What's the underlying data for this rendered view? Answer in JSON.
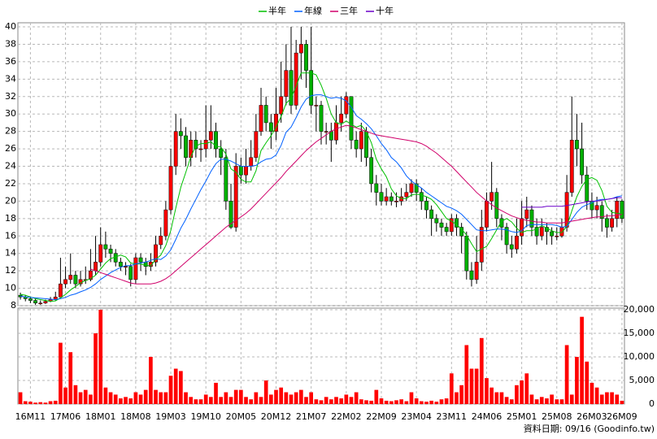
{
  "chart_data": {
    "type": "candlestick",
    "categories": [
      null,
      null,
      "16M11",
      null,
      null,
      null,
      null,
      null,
      null,
      "17M06",
      null,
      null,
      null,
      null,
      null,
      null,
      "18M01",
      null,
      null,
      null,
      null,
      null,
      null,
      "18M08",
      null,
      null,
      null,
      null,
      null,
      null,
      "19M03",
      null,
      null,
      null,
      null,
      null,
      null,
      "19M10",
      null,
      null,
      null,
      null,
      null,
      null,
      "20M05",
      null,
      null,
      null,
      null,
      null,
      null,
      "20M12",
      null,
      null,
      null,
      null,
      null,
      null,
      "21M07",
      null,
      null,
      null,
      null,
      null,
      null,
      "22M02",
      null,
      null,
      null,
      null,
      null,
      null,
      "22M09",
      null,
      null,
      null,
      null,
      null,
      null,
      "23M04",
      null,
      null,
      null,
      null,
      null,
      null,
      "23M11",
      null,
      null,
      null,
      null,
      null,
      null,
      "24M06",
      null,
      null,
      null,
      null,
      null,
      null,
      "25M01",
      null,
      null,
      null,
      null,
      null,
      null,
      "25M08",
      null,
      null,
      null,
      null,
      null,
      null,
      "26M03",
      null,
      null,
      null,
      null,
      null,
      "26M09"
    ],
    "open": [
      9.2,
      9,
      8.8,
      8.6,
      8.3,
      8.3,
      8.5,
      8.7,
      9,
      10.5,
      11,
      11.5,
      10.5,
      11,
      11,
      12,
      13,
      15,
      14.5,
      14,
      13,
      12.5,
      12.5,
      11,
      13.5,
      13,
      12.5,
      13,
      15,
      16,
      19,
      24,
      28,
      27.5,
      25,
      27,
      26,
      26,
      27,
      28,
      26,
      25,
      20,
      17,
      24,
      23,
      24,
      25,
      28,
      31,
      29,
      28,
      30,
      32,
      35,
      31,
      37,
      38,
      35,
      31,
      31,
      28,
      28,
      27,
      29,
      30,
      32,
      27,
      26,
      28,
      25,
      22,
      21,
      20,
      20.5,
      20,
      20,
      20.5,
      21,
      22,
      21,
      20,
      19,
      18,
      17.5,
      17,
      16.5,
      18,
      17,
      16,
      12,
      11,
      13,
      17,
      20,
      21,
      18,
      17,
      15,
      14.5,
      16,
      18,
      19,
      17,
      16,
      17,
      16.5,
      16,
      16,
      17,
      21,
      27,
      26,
      23,
      20,
      19,
      19.5,
      18,
      17,
      18,
      20
    ],
    "high": [
      9.5,
      9.2,
      9,
      8.8,
      8.6,
      8.7,
      9,
      9.6,
      13.5,
      12.5,
      14,
      12,
      12,
      12.5,
      14.5,
      16,
      17,
      16.5,
      15,
      14.5,
      13.5,
      13,
      12.8,
      14,
      14,
      13.5,
      14,
      16,
      17,
      20,
      26,
      30,
      29.5,
      28.5,
      28,
      28,
      27,
      31,
      31,
      29,
      27,
      26,
      22,
      25.5,
      25,
      26,
      27,
      30,
      33,
      32,
      30,
      33,
      36,
      38,
      40,
      38.5,
      40,
      38.5,
      40,
      32,
      31.5,
      29,
      29,
      31,
      32,
      32.5,
      32,
      28,
      29,
      28.5,
      26,
      23,
      22,
      21.5,
      21,
      21,
      21.5,
      22,
      22.5,
      22.5,
      21.5,
      20.5,
      19.5,
      18.5,
      18,
      17.5,
      18.5,
      18.5,
      17.5,
      16.5,
      13,
      16,
      19,
      21,
      24.5,
      21.5,
      18.5,
      17.5,
      16,
      18,
      20,
      20.5,
      19.5,
      18,
      18,
      17.5,
      17,
      17,
      18,
      23,
      32,
      30,
      29,
      24,
      21,
      20.5,
      20,
      18.5,
      19,
      20.5,
      20.2
    ],
    "low": [
      8.7,
      8.5,
      8.3,
      8.1,
      8.1,
      8.2,
      8.4,
      8.6,
      9,
      10,
      10.5,
      10,
      10.2,
      10.5,
      10.8,
      11.5,
      12.5,
      13.5,
      13,
      12.5,
      12,
      11.5,
      10.2,
      10.5,
      12,
      11.5,
      12,
      12.5,
      14.5,
      15.5,
      18.5,
      23,
      26,
      24,
      24,
      25,
      24.5,
      25,
      26,
      25,
      23,
      19,
      16.8,
      16.5,
      22,
      22,
      23.5,
      24.5,
      27.5,
      28,
      26,
      27,
      29,
      31,
      30,
      30.5,
      34,
      33,
      30,
      28,
      26.5,
      26.5,
      24.5,
      26.5,
      28,
      29.5,
      26,
      25,
      24.5,
      24,
      21,
      19.5,
      19.5,
      19.5,
      19.5,
      19.3,
      19.5,
      20,
      20.5,
      20,
      19,
      18,
      16,
      16.5,
      16,
      16,
      16,
      16,
      14,
      11,
      10.2,
      10.5,
      12,
      16.5,
      19,
      17,
      15.5,
      14,
      13.5,
      14,
      15,
      17,
      16,
      15,
      15.5,
      15,
      15,
      15.5,
      15.8,
      16.5,
      20.5,
      24,
      22,
      19,
      18,
      18,
      16.5,
      15.8,
      16.5,
      17,
      17.5
    ],
    "close": [
      9,
      8.8,
      8.6,
      8.3,
      8.3,
      8.5,
      8.7,
      9,
      10.5,
      11,
      11.5,
      10.5,
      11,
      11,
      12,
      13,
      15,
      14.5,
      14,
      13,
      12.5,
      12.5,
      11,
      13.5,
      13,
      12.5,
      13,
      15,
      16,
      19,
      24,
      28,
      27.5,
      25,
      27,
      26,
      26,
      27,
      28,
      26,
      25,
      20,
      17,
      24,
      23,
      24,
      25,
      28,
      31,
      29,
      28,
      30,
      32,
      35,
      31,
      37,
      38,
      35,
      31,
      31,
      28,
      28,
      27,
      29,
      30,
      32,
      27,
      26,
      28,
      25,
      22,
      21,
      20,
      20.5,
      20,
      20,
      20.5,
      21,
      22,
      21,
      20,
      19,
      18,
      17.5,
      17,
      16.5,
      18,
      17,
      16,
      12,
      11,
      13,
      17,
      20,
      21,
      18,
      17,
      15,
      14.5,
      16,
      18,
      19,
      17,
      16,
      17,
      16.5,
      16,
      16,
      17,
      21,
      27,
      26,
      23,
      20,
      19,
      19.5,
      18,
      17,
      18,
      20,
      18
    ],
    "up_color": "#ff0000",
    "down_color": "#00b000",
    "ylim": [
      8,
      40
    ],
    "yticks": [
      8,
      10,
      12,
      14,
      16,
      18,
      20,
      22,
      24,
      26,
      28,
      30,
      32,
      34,
      36,
      38,
      40
    ],
    "grid": true,
    "series": [
      {
        "name": "半年",
        "color": "#00c000",
        "values": [
          9.3,
          9.2,
          9,
          8.8,
          8.7,
          8.6,
          8.5,
          8.55,
          8.9,
          9.3,
          9.8,
          10.2,
          10.6,
          10.9,
          11.1,
          11.5,
          12.2,
          12.9,
          13.4,
          13.6,
          13.8,
          13.6,
          12.9,
          12.8,
          12.8,
          12.6,
          12.6,
          13.3,
          13.8,
          14.9,
          16.6,
          19.2,
          21.6,
          23.3,
          25.1,
          26.3,
          26.6,
          26.6,
          26.8,
          26.3,
          26.2,
          25.4,
          23.7,
          23.3,
          22.5,
          22.2,
          22.2,
          23.5,
          25.8,
          26.7,
          27.5,
          28.5,
          29.7,
          31.2,
          31.8,
          33.2,
          34.7,
          34.7,
          34.7,
          34.5,
          33.3,
          31.8,
          30,
          29,
          28.8,
          29.2,
          28.8,
          28.5,
          28.7,
          28,
          26.7,
          24.8,
          23.7,
          22.8,
          21.4,
          20.6,
          20.3,
          20.3,
          20.7,
          20.8,
          20.7,
          20.5,
          20.2,
          19.6,
          18.8,
          18,
          17.7,
          17.3,
          16.8,
          16.1,
          15.1,
          14.2,
          14.5,
          14.8,
          15.7,
          16.7,
          17.7,
          18,
          17.6,
          16.9,
          16.4,
          16.6,
          16.6,
          16.8,
          17.2,
          16.9,
          16.6,
          16.4,
          16.4,
          17.1,
          18.9,
          20.5,
          21.7,
          22.5,
          22.7,
          22.4,
          21.2,
          19.4,
          18.7,
          18.6,
          18.6
        ]
      },
      {
        "name": "年線",
        "color": "#0060ff",
        "values": [
          9.1,
          9,
          8.95,
          8.9,
          8.85,
          8.8,
          8.75,
          8.7,
          8.8,
          8.95,
          9.2,
          9.35,
          9.6,
          9.8,
          10.1,
          10.5,
          11,
          11.4,
          11.8,
          12.1,
          12.4,
          12.6,
          12.6,
          12.8,
          12.9,
          13,
          13.2,
          13.4,
          13.3,
          13.7,
          14.4,
          15.6,
          16.9,
          17.9,
          19.1,
          20.2,
          21.3,
          22.3,
          23.4,
          24.3,
          24.8,
          24.8,
          24.6,
          24.3,
          24,
          24,
          24,
          24.1,
          24.5,
          24.8,
          24.9,
          25.3,
          26.4,
          27.9,
          28.5,
          29.6,
          30.8,
          31.7,
          32.1,
          32.2,
          32.2,
          32,
          31.8,
          31.9,
          31.8,
          31.5,
          30.8,
          29.8,
          29.4,
          28.9,
          28.3,
          27.5,
          26.6,
          25.9,
          25,
          24.5,
          23.8,
          22.9,
          22.3,
          21.9,
          21.5,
          21,
          20.6,
          20.2,
          19.8,
          19.4,
          19.2,
          18.9,
          18.5,
          17.9,
          17.3,
          16.7,
          16.6,
          16.6,
          16.7,
          16.8,
          16.8,
          16.7,
          16.5,
          16.4,
          16.6,
          17.2,
          17.3,
          17.3,
          17.3,
          17.3,
          17.3,
          17.2,
          17,
          17.1,
          17.9,
          18.7,
          19.3,
          19.6,
          19.8,
          20.1,
          20.2,
          20.2,
          20.3,
          20.5,
          20.6
        ]
      },
      {
        "name": "三年",
        "color": "#d0006a",
        "values": [
          null,
          null,
          null,
          null,
          null,
          null,
          null,
          null,
          null,
          null,
          null,
          null,
          null,
          null,
          12.2,
          12,
          11.8,
          11.6,
          11.4,
          11.2,
          11,
          10.8,
          10.6,
          10.5,
          10.5,
          10.5,
          10.5,
          10.6,
          10.8,
          11.1,
          11.5,
          12,
          12.5,
          13,
          13.5,
          14,
          14.5,
          15,
          15.5,
          16,
          16.5,
          17,
          17.4,
          17.8,
          18.2,
          18.6,
          19.1,
          19.7,
          20.3,
          20.9,
          21.5,
          22.1,
          22.7,
          23.4,
          24,
          24.6,
          25.2,
          25.8,
          26.3,
          26.8,
          27.2,
          27.6,
          28,
          28.3,
          28.5,
          28.7,
          28.6,
          28.4,
          28.2,
          28,
          27.8,
          27.6,
          27.5,
          27.4,
          27.3,
          27.2,
          27.1,
          27,
          26.9,
          26.8,
          26.6,
          26.3,
          25.9,
          25.5,
          25,
          24.5,
          24,
          23.4,
          22.8,
          22.2,
          21.6,
          21,
          20.5,
          20,
          19.6,
          19.2,
          18.9,
          18.6,
          18.3,
          18.1,
          17.9,
          17.8,
          17.7,
          17.6,
          17.6,
          17.5,
          17.5,
          17.5,
          17.5,
          17.6,
          17.7,
          17.8,
          17.9,
          18,
          18.1,
          18.2,
          18.2,
          18.3,
          18.3,
          18.4,
          18.5
        ]
      },
      {
        "name": "十年",
        "color": "#6a00c8",
        "values": [
          null,
          null,
          null,
          null,
          null,
          null,
          null,
          null,
          null,
          null,
          null,
          null,
          null,
          null,
          null,
          null,
          null,
          null,
          null,
          null,
          null,
          null,
          null,
          null,
          null,
          null,
          null,
          null,
          null,
          null,
          null,
          null,
          null,
          null,
          null,
          null,
          null,
          null,
          null,
          null,
          null,
          null,
          null,
          null,
          null,
          null,
          null,
          null,
          null,
          null,
          null,
          null,
          null,
          null,
          null,
          null,
          null,
          null,
          null,
          null,
          null,
          null,
          null,
          null,
          null,
          null,
          null,
          null,
          null,
          null,
          null,
          null,
          null,
          null,
          null,
          null,
          null,
          null,
          null,
          null,
          null,
          null,
          null,
          null,
          null,
          null,
          null,
          null,
          null,
          null,
          null,
          null,
          null,
          null,
          null,
          null,
          null,
          null,
          null,
          null,
          19.3,
          19.3,
          19.3,
          19.3,
          19.3,
          19.4,
          19.4,
          19.4,
          19.4,
          19.5,
          19.6,
          19.7,
          19.8,
          19.9,
          20,
          20,
          20.1,
          20.2,
          20.3,
          20.4,
          20.4
        ]
      }
    ],
    "volume": {
      "color": "#ff0000",
      "values": [
        2500,
        600,
        500,
        300,
        400,
        300,
        600,
        700,
        13000,
        3500,
        11000,
        4000,
        2500,
        3000,
        2000,
        15000,
        20000,
        3500,
        2500,
        2000,
        1200,
        1500,
        1200,
        2500,
        2000,
        3000,
        10000,
        3000,
        2500,
        2500,
        6000,
        7500,
        7000,
        2500,
        1500,
        1000,
        1000,
        2000,
        1500,
        4500,
        1500,
        2500,
        1500,
        3000,
        3000,
        1500,
        1000,
        2500,
        1500,
        5000,
        2000,
        3000,
        3500,
        2500,
        2000,
        2500,
        3000,
        1500,
        2500,
        1000,
        800,
        1500,
        1000,
        1500,
        1200,
        2000,
        1500,
        2500,
        1000,
        800,
        700,
        3000,
        1200,
        700,
        600,
        800,
        1000,
        600,
        2500,
        1200,
        600,
        500,
        700,
        500,
        1000,
        1200,
        6500,
        2500,
        4000,
        12500,
        7500,
        7500,
        14000,
        5500,
        3500,
        2500,
        2500,
        1500,
        1000,
        4000,
        5000,
        6500,
        2000,
        1000,
        1500,
        1200,
        2000,
        1000,
        1000,
        12500,
        2000,
        10000,
        18500,
        9000,
        4500,
        3500,
        2000,
        2500,
        2500,
        2000,
        700
      ],
      "ylim": [
        0,
        20000
      ],
      "yticks": [
        0,
        {
          "value": 5000,
          "label": "5,000"
        },
        {
          "value": 10000,
          "label": "10,000"
        },
        {
          "value": 15000,
          "label": "15,000"
        },
        {
          "value": 20000,
          "label": "20,000"
        }
      ]
    },
    "source_note": "資料日期: 09/16  (Goodinfo.tw)"
  }
}
